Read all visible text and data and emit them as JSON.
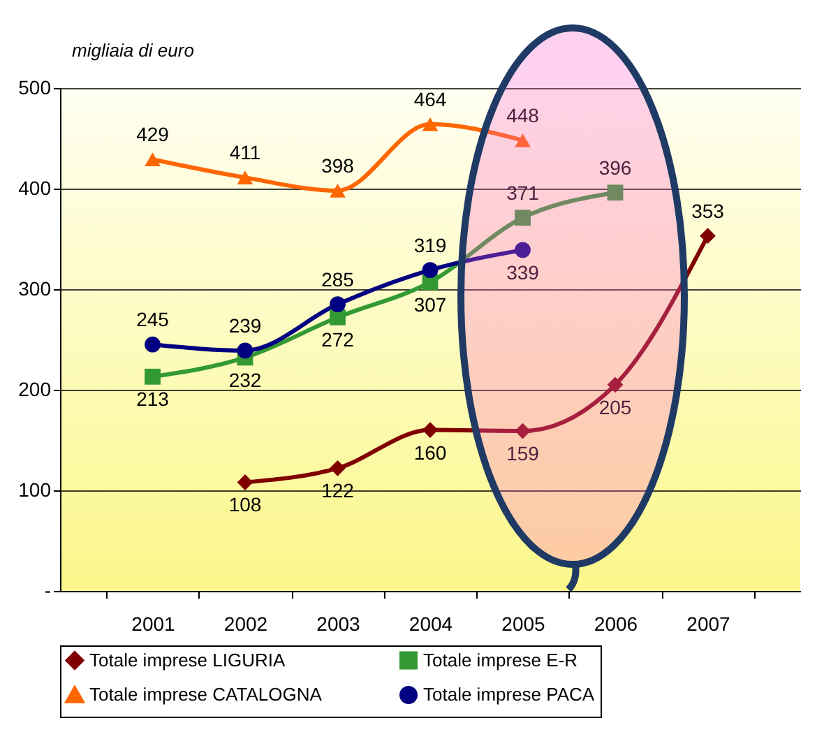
{
  "chart_data": {
    "type": "line",
    "ylabel": "migliaia di euro",
    "categories": [
      "2001",
      "2002",
      "2003",
      "2004",
      "2005",
      "2006",
      "2007"
    ],
    "series": [
      {
        "name": "Totale imprese LIGURIA",
        "color": "#800000",
        "marker": "diamond",
        "values": [
          null,
          108,
          122,
          160,
          159,
          205,
          353
        ]
      },
      {
        "name": "Totale imprese E-R",
        "color": "#339933",
        "marker": "square",
        "values": [
          213,
          232,
          272,
          307,
          371,
          396,
          null
        ]
      },
      {
        "name": "Totale imprese CATALOGNA",
        "color": "#ff6600",
        "marker": "triangle",
        "values": [
          429,
          411,
          398,
          464,
          448,
          null,
          null
        ]
      },
      {
        "name": "Totale imprese PACA",
        "color": "#000080",
        "marker": "circle",
        "values": [
          245,
          239,
          285,
          319,
          339,
          null,
          null
        ]
      }
    ],
    "ylim": [
      0,
      500
    ],
    "yticks": [
      {
        "value": 0,
        "label": "-"
      },
      100,
      200,
      300,
      400,
      500
    ],
    "grid": "y",
    "legend": "bottom",
    "data_labels": true
  }
}
